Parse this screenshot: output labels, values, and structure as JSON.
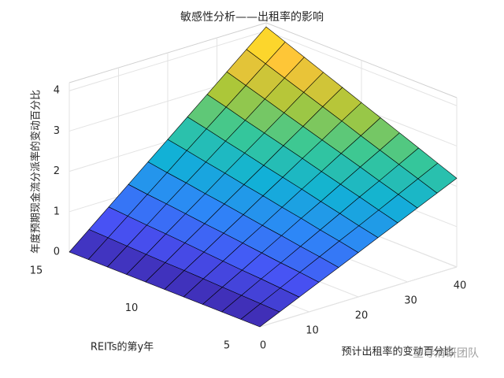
{
  "chart_data": {
    "type": "surface",
    "title": "敏感性分析——出租率的影响",
    "xlabel": "预计出租率的变动百分比",
    "ylabel": "REITs的第y年",
    "zlabel": "年度预期现金流分派率的变动百分比",
    "x": [
      0,
      4,
      8,
      12,
      16,
      20,
      24,
      28,
      32,
      36,
      40
    ],
    "y": [
      5,
      6,
      7,
      8,
      9,
      10,
      11,
      12,
      13,
      14,
      15
    ],
    "z": [
      [
        0,
        0.22,
        0.44,
        0.66,
        0.88,
        1.1,
        1.32,
        1.54,
        1.76,
        1.98,
        2.2
      ],
      [
        0,
        0.24,
        0.48,
        0.72,
        0.96,
        1.2,
        1.43,
        1.67,
        1.91,
        2.15,
        2.39
      ],
      [
        0,
        0.26,
        0.52,
        0.77,
        1.03,
        1.29,
        1.55,
        1.81,
        2.06,
        2.32,
        2.58
      ],
      [
        0,
        0.28,
        0.55,
        0.83,
        1.11,
        1.39,
        1.66,
        1.94,
        2.22,
        2.49,
        2.77
      ],
      [
        0,
        0.3,
        0.59,
        0.89,
        1.18,
        1.48,
        1.78,
        2.07,
        2.37,
        2.66,
        2.96
      ],
      [
        0,
        0.32,
        0.63,
        0.95,
        1.26,
        1.58,
        1.89,
        2.21,
        2.52,
        2.84,
        3.15
      ],
      [
        0,
        0.33,
        0.67,
        1,
        1.34,
        1.67,
        2,
        2.34,
        2.67,
        3.01,
        3.34
      ],
      [
        0,
        0.35,
        0.71,
        1.06,
        1.41,
        1.77,
        2.12,
        2.47,
        2.82,
        3.18,
        3.53
      ],
      [
        0,
        0.37,
        0.74,
        1.12,
        1.49,
        1.86,
        2.23,
        2.6,
        2.98,
        3.35,
        3.72
      ],
      [
        0,
        0.39,
        0.78,
        1.17,
        1.56,
        1.96,
        2.35,
        2.74,
        3.13,
        3.52,
        3.91
      ],
      [
        0,
        0.41,
        0.82,
        1.23,
        1.64,
        2.05,
        2.46,
        2.87,
        3.28,
        3.69,
        4.1
      ]
    ],
    "xlim": [
      0,
      40
    ],
    "ylim": [
      5,
      15
    ],
    "zlim": [
      0,
      4.2
    ],
    "xticks": [
      0,
      10,
      20,
      30,
      40
    ],
    "yticks": [
      5,
      10,
      15
    ],
    "zticks": [
      0,
      1,
      2,
      3,
      4
    ],
    "colormap": "parula",
    "grid": true
  },
  "watermark": "望导清研团队"
}
